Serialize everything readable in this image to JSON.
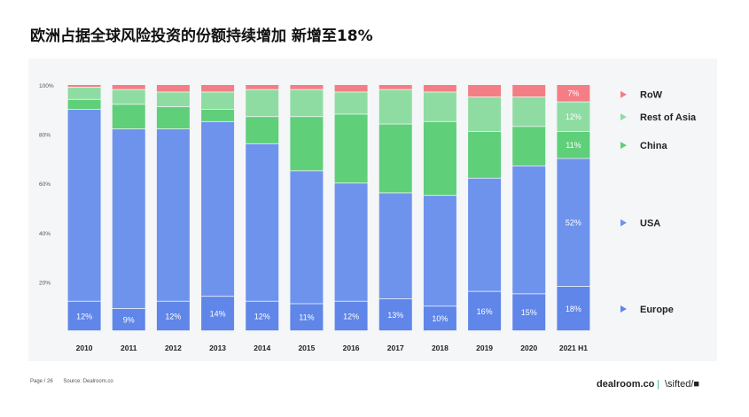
{
  "title": "欧洲占据全球风险投资的份额持续增加 新增至18%",
  "footer": {
    "page": "Page / 26",
    "source": "Source: Dealroom.co"
  },
  "brands": {
    "dealroom": "dealroom.co",
    "sep": "|",
    "sifted": "\\sifted/■"
  },
  "colors": {
    "europe": "#5f86e8",
    "europe_dark": "#4f78e0",
    "usa": "#6e93ed",
    "china": "#5fcf7a",
    "rest_of_asia": "#8fdca2",
    "row": "#f47e86",
    "panel": "#f5f6f8"
  },
  "chart_data": {
    "type": "bar",
    "stacked": true,
    "categories": [
      "2010",
      "2011",
      "2012",
      "2013",
      "2014",
      "2015",
      "2016",
      "2017",
      "2018",
      "2019",
      "2020",
      "2021 H1"
    ],
    "yticks": [
      "20%",
      "40%",
      "60%",
      "80%",
      "100%"
    ],
    "ylim": [
      0,
      100
    ],
    "series": [
      {
        "name": "Europe",
        "key": "europe",
        "values": [
          12,
          9,
          12,
          14,
          12,
          11,
          12,
          13,
          10,
          16,
          15,
          18
        ],
        "labels": [
          "12%",
          "9%",
          "12%",
          "14%",
          "12%",
          "11%",
          "12%",
          "13%",
          "10%",
          "16%",
          "15%",
          "18%"
        ]
      },
      {
        "name": "USA",
        "key": "usa",
        "values": [
          78,
          73,
          70,
          71,
          64,
          54,
          48,
          43,
          45,
          46,
          52,
          52
        ]
      },
      {
        "name": "China",
        "key": "china",
        "values": [
          4,
          10,
          9,
          5,
          11,
          22,
          28,
          28,
          30,
          19,
          16,
          11
        ]
      },
      {
        "name": "Rest of Asia",
        "key": "rest_of_asia",
        "values": [
          5,
          6,
          6,
          7,
          11,
          11,
          9,
          14,
          12,
          14,
          12,
          12
        ]
      },
      {
        "name": "RoW",
        "key": "row",
        "values": [
          1,
          2,
          3,
          3,
          2,
          2,
          3,
          2,
          3,
          5,
          5,
          7
        ]
      }
    ],
    "highlight_labels": [
      {
        "series": "RoW",
        "label": "7%"
      },
      {
        "series": "Rest of Asia",
        "label": "12%"
      },
      {
        "series": "China",
        "label": "11%"
      },
      {
        "series": "USA",
        "label": "52%"
      }
    ]
  }
}
